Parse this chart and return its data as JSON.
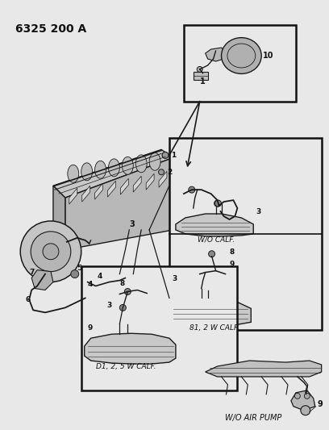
{
  "title": "6325 200 A",
  "bg_color": "#e8e8e8",
  "fig_width": 4.08,
  "fig_height": 5.33,
  "dpi": 100,
  "line_color": "#1a1a1a",
  "text_color": "#111111",
  "box_edge_color": "#111111",
  "box_fill": "#e8e8e8",
  "part_fill": "#c8c8c8",
  "engine_fill": "#d0d0d0",
  "labels": {
    "title": "6325 200 A",
    "wo_calif": "W/O CALF.",
    "b1_2w_calif": "81, 2 W CALF.",
    "d1_2_5w_calif": "D1, 2, 5 W CALF.",
    "wo_air_pump": "W/O AIR PUMP"
  }
}
